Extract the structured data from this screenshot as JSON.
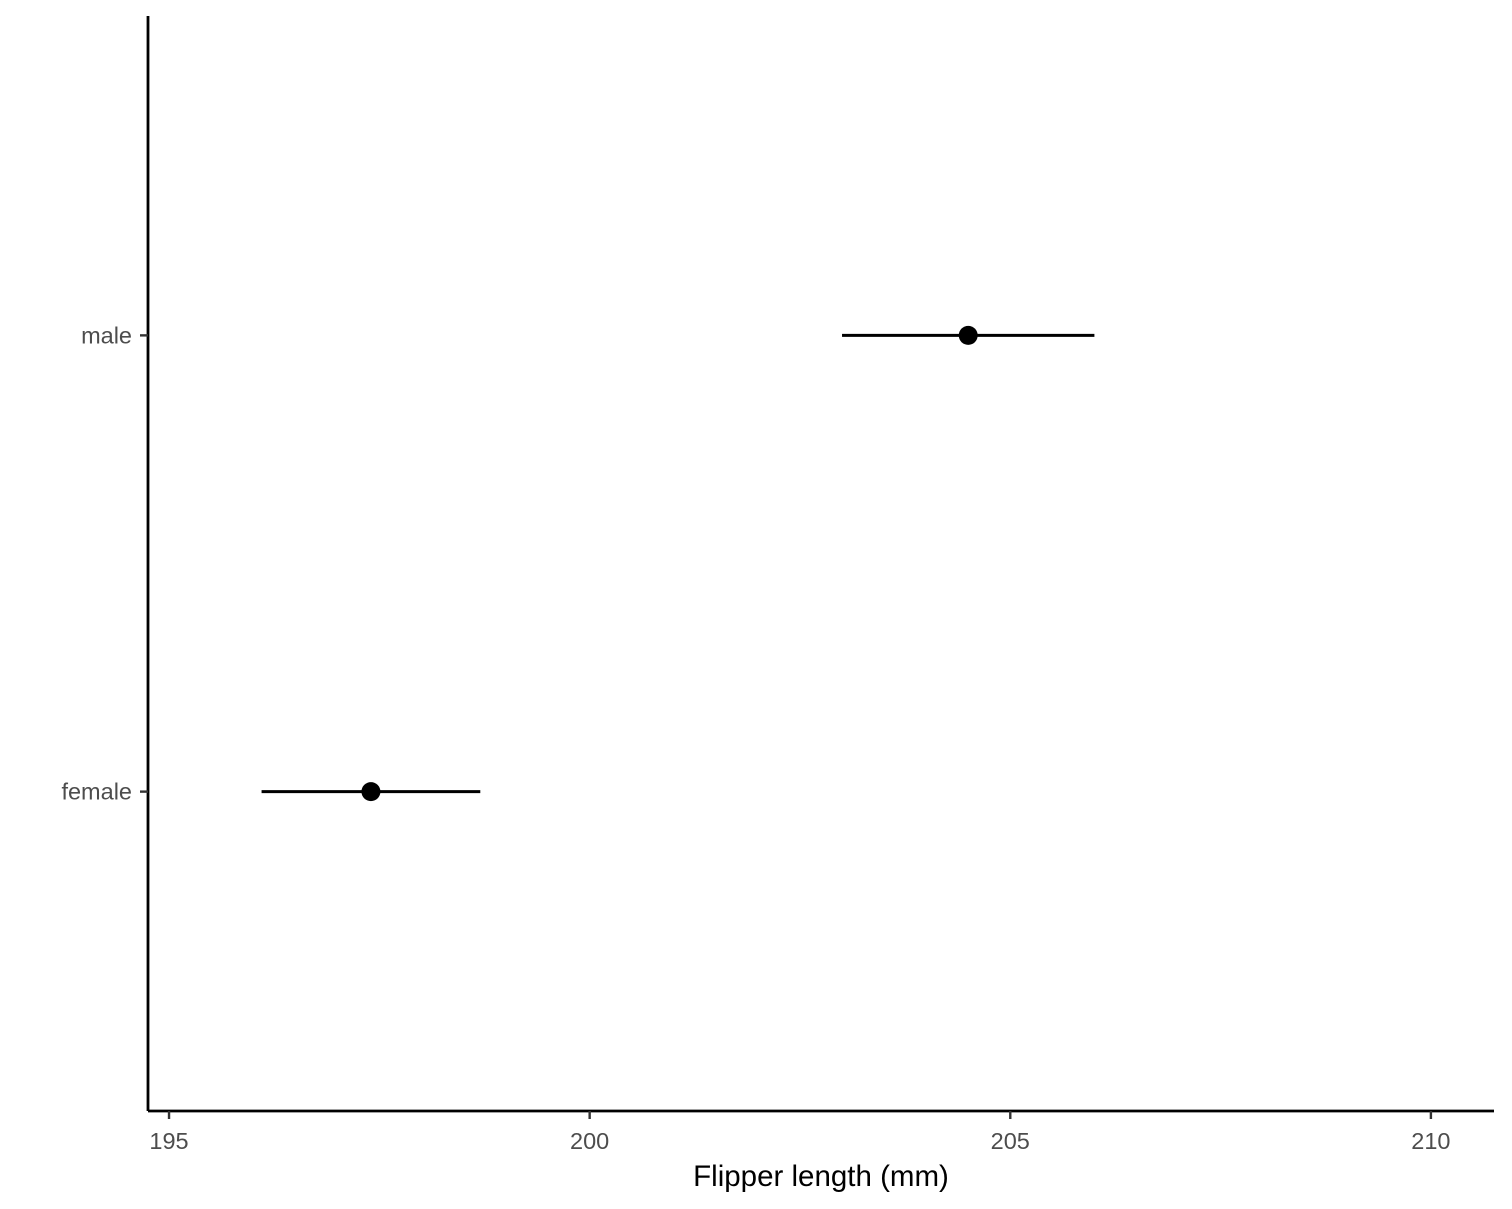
{
  "chart_data": {
    "type": "pointrange",
    "orientation": "horizontal",
    "title": "",
    "xlabel": "Flipper length (mm)",
    "ylabel": "",
    "xlim": [
      194.75,
      210.75
    ],
    "x_ticks": [
      195,
      200,
      205,
      210
    ],
    "x_tick_labels": [
      "195",
      "200",
      "205",
      "210"
    ],
    "categories": [
      "female",
      "male"
    ],
    "series": [
      {
        "points": [
          {
            "category": "female",
            "estimate": 197.4,
            "low": 196.1,
            "high": 198.7
          },
          {
            "category": "male",
            "estimate": 204.5,
            "low": 203.0,
            "high": 206.0
          }
        ]
      }
    ],
    "grid": false,
    "legend": "none",
    "colors": {
      "marks": "#000000",
      "axis": "#000000",
      "tick_label": "#4d4d4d"
    }
  }
}
